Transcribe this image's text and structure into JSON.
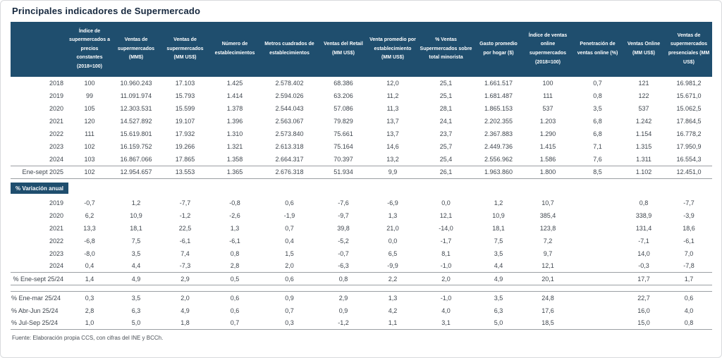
{
  "title": "Principales indicadores de Supermercado",
  "colors": {
    "header_bg": "#1F4E6E",
    "text": "#3F464E",
    "rule": "#9B9FA3",
    "frame": "#D8DADD"
  },
  "table": {
    "corner_label": "",
    "columns": [
      "Índice de supermercados a precios constantes (2018=100)",
      "Ventas de supermercados (MM$)",
      "Ventas de supermercados (MM US$)",
      "Número de establecimientos",
      "Metros cuadrados de establecimientos",
      "Ventas del Retail (MM US$)",
      "Venta promedio por establecimiento (MM US$)",
      "% Ventas Supermercados sobre total minorista",
      "Gasto promedio por hogar ($)",
      "Índice de ventas online supermercados (2018=100)",
      "Penetración de ventas online (%)",
      "Ventas Online (MM US$)",
      "Ventas de supermercados presenciales (MM US$)"
    ],
    "main_rows": [
      {
        "label": "2018",
        "values": [
          "100",
          "10.960.243",
          "17.103",
          "1.425",
          "2.578.402",
          "68.386",
          "12,0",
          "25,1",
          "1.661.517",
          "100",
          "0,7",
          "121",
          "16.981,2"
        ]
      },
      {
        "label": "2019",
        "values": [
          "99",
          "11.091.974",
          "15.793",
          "1.414",
          "2.594.026",
          "63.206",
          "11,2",
          "25,1",
          "1.681.487",
          "111",
          "0,8",
          "122",
          "15.671,0"
        ]
      },
      {
        "label": "2020",
        "values": [
          "105",
          "12.303.531",
          "15.599",
          "1.378",
          "2.544.043",
          "57.086",
          "11,3",
          "28,1",
          "1.865.153",
          "537",
          "3,5",
          "537",
          "15.062,5"
        ]
      },
      {
        "label": "2021",
        "values": [
          "120",
          "14.527.892",
          "19.107",
          "1.396",
          "2.563.067",
          "79.829",
          "13,7",
          "24,1",
          "2.202.355",
          "1.203",
          "6,8",
          "1.242",
          "17.864,5"
        ]
      },
      {
        "label": "2022",
        "values": [
          "111",
          "15.619.801",
          "17.932",
          "1.310",
          "2.573.840",
          "75.661",
          "13,7",
          "23,7",
          "2.367.883",
          "1.290",
          "6,8",
          "1.154",
          "16.778,2"
        ]
      },
      {
        "label": "2023",
        "values": [
          "102",
          "16.159.752",
          "19.266",
          "1.321",
          "2.613.318",
          "75.164",
          "14,6",
          "25,7",
          "2.449.736",
          "1.415",
          "7,1",
          "1.315",
          "17.950,9"
        ]
      },
      {
        "label": "2024",
        "values": [
          "103",
          "16.867.066",
          "17.865",
          "1.358",
          "2.664.317",
          "70.397",
          "13,2",
          "25,4",
          "2.556.962",
          "1.586",
          "7,6",
          "1.311",
          "16.554,3"
        ]
      },
      {
        "label": "Ene-sept 2025",
        "values": [
          "102",
          "12.954.657",
          "13.553",
          "1.365",
          "2.676.318",
          "51.934",
          "9,9",
          "26,1",
          "1.963.860",
          "1.800",
          "8,5",
          "1.102",
          "12.451,0"
        ]
      }
    ],
    "variation_label": "% Variación anual",
    "variation_rows": [
      {
        "label": "2019",
        "values": [
          "-0,7",
          "1,2",
          "-7,7",
          "-0,8",
          "0,6",
          "-7,6",
          "-6,9",
          "0,0",
          "1,2",
          "10,7",
          "",
          "0,8",
          "-7,7"
        ]
      },
      {
        "label": "2020",
        "values": [
          "6,2",
          "10,9",
          "-1,2",
          "-2,6",
          "-1,9",
          "-9,7",
          "1,3",
          "12,1",
          "10,9",
          "385,4",
          "",
          "338,9",
          "-3,9"
        ]
      },
      {
        "label": "2021",
        "values": [
          "13,3",
          "18,1",
          "22,5",
          "1,3",
          "0,7",
          "39,8",
          "21,0",
          "-14,0",
          "18,1",
          "123,8",
          "",
          "131,4",
          "18,6"
        ]
      },
      {
        "label": "2022",
        "values": [
          "-6,8",
          "7,5",
          "-6,1",
          "-6,1",
          "0,4",
          "-5,2",
          "0,0",
          "-1,7",
          "7,5",
          "7,2",
          "",
          "-7,1",
          "-6,1"
        ]
      },
      {
        "label": "2023",
        "values": [
          "-8,0",
          "3,5",
          "7,4",
          "0,8",
          "1,5",
          "-0,7",
          "6,5",
          "8,1",
          "3,5",
          "9,7",
          "",
          "14,0",
          "7,0"
        ]
      },
      {
        "label": "2024",
        "values": [
          "0,4",
          "4,4",
          "-7,3",
          "2,8",
          "2,0",
          "-6,3",
          "-9,9",
          "-1,0",
          "4,4",
          "12,1",
          "",
          "-0,3",
          "-7,8"
        ]
      },
      {
        "label": "% Ene-sept 25/24",
        "values": [
          "1,4",
          "4,9",
          "2,9",
          "0,5",
          "0,6",
          "0,8",
          "2,2",
          "2,0",
          "4,9",
          "20,1",
          "",
          "17,7",
          "1,7"
        ]
      }
    ],
    "quarter_rows": [
      {
        "label": "% Ene-mar 25/24",
        "values": [
          "0,3",
          "3,5",
          "2,0",
          "0,6",
          "0,9",
          "2,9",
          "1,3",
          "-1,0",
          "3,5",
          "24,8",
          "",
          "22,7",
          "0,6"
        ]
      },
      {
        "label": "% Abr-Jun 25/24",
        "values": [
          "2,8",
          "6,3",
          "4,9",
          "0,6",
          "0,7",
          "0,9",
          "4,2",
          "4,0",
          "6,3",
          "17,6",
          "",
          "16,0",
          "4,0"
        ]
      },
      {
        "label": "% Jul-Sep 25/24",
        "values": [
          "1,0",
          "5,0",
          "1,8",
          "0,7",
          "0,3",
          "-1,2",
          "1,1",
          "3,1",
          "5,0",
          "18,5",
          "",
          "15,0",
          "0,8"
        ]
      }
    ]
  },
  "footer": {
    "source": "Fuente: Elaboración propia CCS, con cifras del INE y BCCh."
  }
}
